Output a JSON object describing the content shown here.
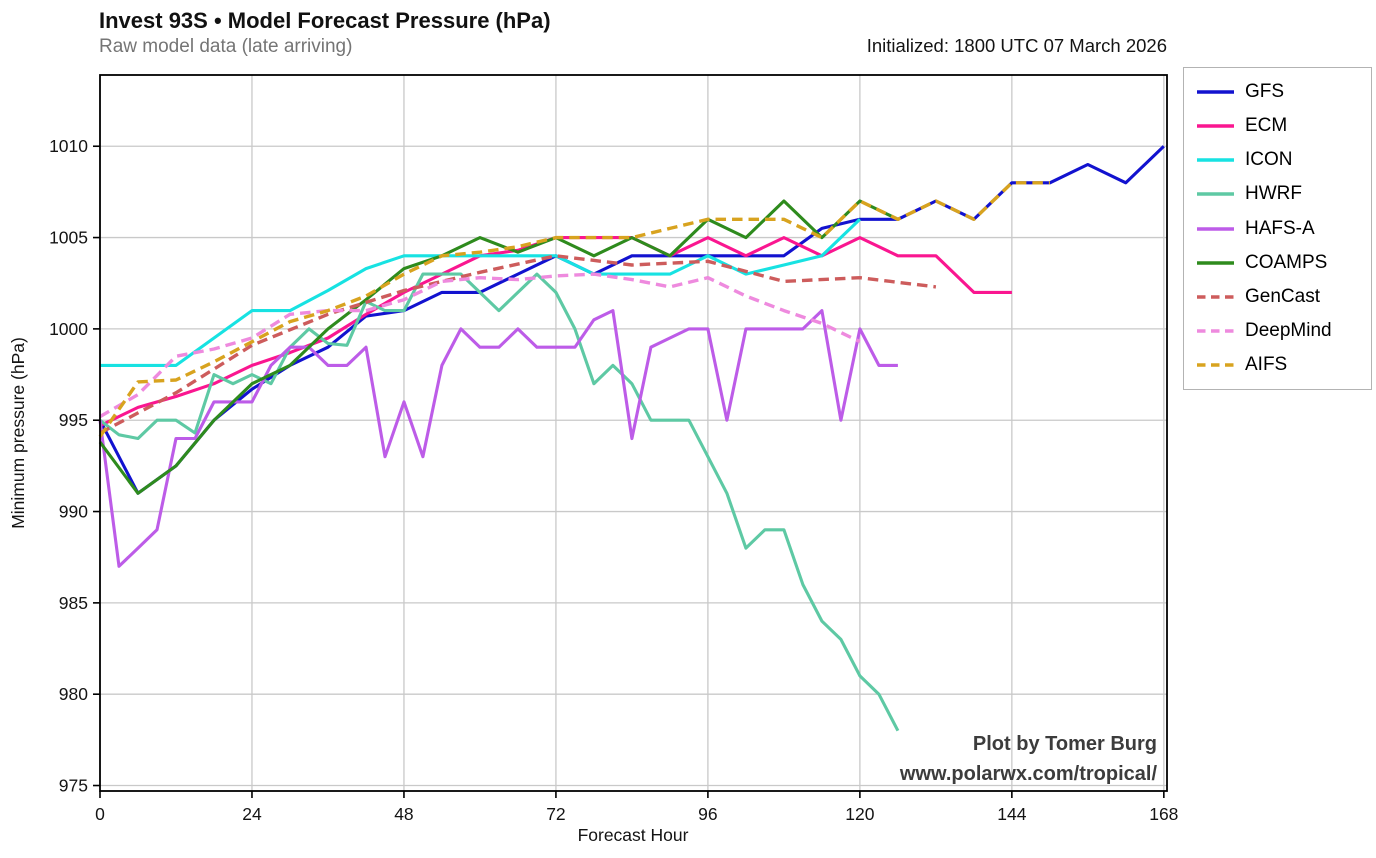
{
  "header": {
    "title": "Invest 93S • Model Forecast Pressure (hPa)",
    "subtitle": "Raw model data (late arriving)",
    "initialized": "Initialized: 1800 UTC 07 March 2026"
  },
  "watermark": {
    "line1": "Plot by Tomer Burg",
    "line2": "www.polarwx.com/tropical/"
  },
  "chart_data": {
    "type": "line",
    "title": "Invest 93S • Model Forecast Pressure (hPa)",
    "xlabel": "Forecast Hour",
    "ylabel": "Minimum pressure (hPa)",
    "x_ticks": [
      0,
      24,
      48,
      72,
      96,
      120,
      144,
      168
    ],
    "y_ticks": [
      975,
      980,
      985,
      990,
      995,
      1000,
      1005,
      1010
    ],
    "xlim": [
      0,
      168.5
    ],
    "ylim": [
      974.7,
      1013.9
    ],
    "grid": true,
    "grid_color": "#c9c9c9",
    "legend_position": "outside-top-right",
    "series": [
      {
        "name": "GFS",
        "color": "#1212cf",
        "style": "solid",
        "x_start": 0,
        "x_step": 6,
        "values": [
          995,
          991,
          992.5,
          995,
          996.7,
          998,
          999,
          1000.7,
          1001,
          1002,
          1002,
          1003,
          1004,
          1003,
          1004,
          1004,
          1004,
          1004,
          1004,
          1005.5,
          1006,
          1006,
          1007,
          1006,
          1008,
          1008,
          1009,
          1008,
          1010
        ]
      },
      {
        "name": "ECM",
        "color": "#fa1690",
        "style": "solid",
        "x_start": 0,
        "x_step": 6,
        "values": [
          994.7,
          995.7,
          996.3,
          997,
          998,
          998.7,
          999.5,
          1000.8,
          1002,
          1003,
          1004,
          1004.3,
          1005,
          1005,
          1005,
          1004,
          1005,
          1004,
          1005,
          1004,
          1005,
          1004,
          1004,
          1002,
          1002
        ]
      },
      {
        "name": "ICON",
        "color": "#17e2e2",
        "style": "solid",
        "x_start": 0,
        "x_step": 6,
        "values": [
          998,
          998,
          998,
          999.5,
          1001,
          1001,
          1002.1,
          1003.3,
          1004,
          1004,
          1004,
          1004,
          1004,
          1003,
          1003,
          1003,
          1004,
          1003,
          1003.5,
          1004,
          1006
        ]
      },
      {
        "name": "HWRF",
        "color": "#5ec9a4",
        "style": "solid",
        "x_start": 0,
        "x_step": 3,
        "values": [
          995,
          994.2,
          994,
          995,
          995,
          994.3,
          997.5,
          997,
          997.5,
          997,
          999,
          1000,
          999.2,
          999.1,
          1001.5,
          1001,
          1001,
          1003,
          1003,
          1003,
          1002,
          1001,
          1002,
          1003,
          1002,
          1000,
          997,
          998,
          997,
          995,
          995,
          995,
          993,
          991,
          988,
          989,
          989,
          986,
          984,
          983,
          981,
          980,
          978
        ]
      },
      {
        "name": "HAFS-A",
        "color": "#bd5ce8",
        "style": "solid",
        "x_start": 0,
        "x_step": 3,
        "values": [
          995,
          987,
          988,
          989,
          994,
          994,
          996,
          996,
          996,
          998,
          999,
          999,
          998,
          998,
          999,
          993,
          996,
          993,
          998,
          1000,
          999,
          999,
          1000,
          999,
          999,
          999,
          1000.5,
          1001,
          994,
          999,
          999.5,
          1000,
          1000,
          995,
          1000,
          1000,
          1000,
          1000,
          1001,
          995,
          1000,
          998,
          998
        ]
      },
      {
        "name": "COAMPS",
        "color": "#2e8b1d",
        "style": "solid",
        "x_start": 0,
        "x_step": 6,
        "values": [
          993.8,
          991,
          992.5,
          995,
          997,
          998,
          1000,
          1001.6,
          1003.3,
          1004,
          1005,
          1004.2,
          1005,
          1004,
          1005,
          1004,
          1006,
          1005,
          1007,
          1005,
          1007,
          1006
        ]
      },
      {
        "name": "GenCast",
        "color": "#cd5c5c",
        "style": "dashed",
        "x_start": 0,
        "x_step": 12,
        "values": [
          994.3,
          996.5,
          999.1,
          1000.8,
          1002.1,
          1003.1,
          1004,
          1003.5,
          1003.7,
          1002.6,
          1002.8,
          1002.3
        ]
      },
      {
        "name": "DeepMind",
        "color": "#ee8ade",
        "style": "dashed",
        "x_start": 0,
        "x_step": 6,
        "values": [
          995.2,
          996.4,
          998.5,
          998.9,
          999.5,
          1000.8,
          1001,
          1001,
          1001.6,
          1002.6,
          1002.8,
          1002.7,
          1002.9,
          1003,
          1002.7,
          1002.3,
          1002.8,
          1001.8,
          1001,
          1000.3,
          999.3
        ]
      },
      {
        "name": "AIFS",
        "color": "#d8a31f",
        "style": "dashed",
        "x_start": 0,
        "x_step": 6,
        "values": [
          994.1,
          997.1,
          997.2,
          998.2,
          999.3,
          1000.4,
          1001,
          1001.8,
          1003,
          1004,
          1004.2,
          1004.5,
          1005,
          1005,
          1005,
          1005.5,
          1006,
          1006,
          1006,
          1005,
          1007,
          1006,
          1007,
          1006,
          1008,
          1008
        ]
      }
    ]
  }
}
